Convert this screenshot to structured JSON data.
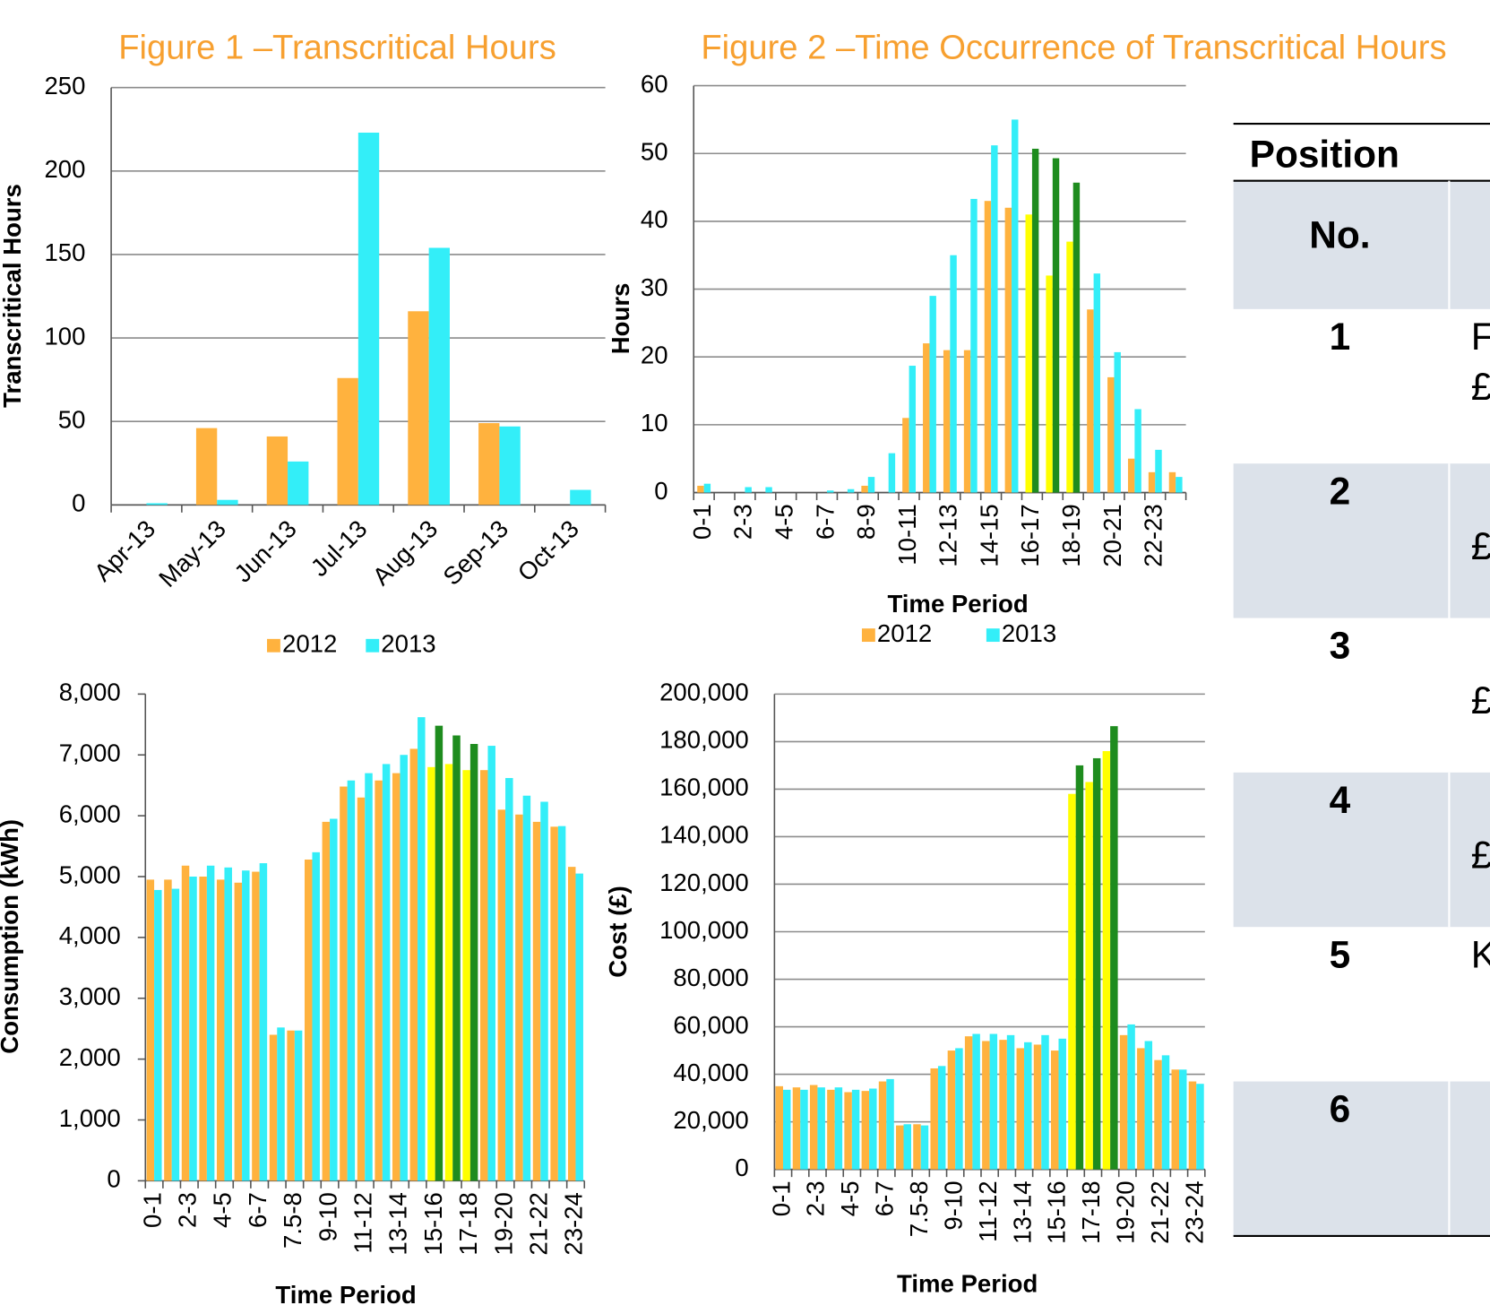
{
  "chart_data": [
    {
      "type": "bar",
      "title": "Figure 1 –Transcritical Hours",
      "ylabel": "Transcritical Hours",
      "categories": [
        "Apr-13",
        "May-13",
        "Jun-13",
        "Jul-13",
        "Aug-13",
        "Sep-13",
        "Oct-13"
      ],
      "series": [
        {
          "name": "2012",
          "color": "#FFB23E",
          "values": [
            0,
            46,
            41,
            76,
            116,
            49,
            0
          ]
        },
        {
          "name": "2013",
          "color": "#33EEF8",
          "values": [
            1,
            3,
            26,
            223,
            154,
            47,
            9
          ]
        }
      ],
      "ylim": [
        0,
        250
      ],
      "yticks": [
        0,
        50,
        100,
        150,
        200,
        250
      ],
      "grid": true,
      "legend": "bottom",
      "label_rotation": 45
    },
    {
      "type": "bar",
      "title": "Figure 2 –Time Occurrence of Transcritical Hours",
      "xlabel": "Time Period",
      "ylabel": "Hours",
      "categories": [
        "0-1",
        null,
        "2-3",
        null,
        "4-5",
        null,
        "6-7",
        null,
        "8-9",
        null,
        "10-11",
        null,
        "12-13",
        null,
        "14-15",
        null,
        "16-17",
        null,
        "18-19",
        null,
        "20-21",
        null,
        "22-23",
        null
      ],
      "series": [
        {
          "name": "2012",
          "color": "#FFB23E",
          "colors": [
            "#FFB23E",
            "#FFB23E",
            "#FFB23E",
            "#FFB23E",
            "#FFB23E",
            "#FFB23E",
            "#FFB23E",
            "#FFB23E",
            "#FFB23E",
            "#FFB23E",
            "#FFB23E",
            "#FFB23E",
            "#FFB23E",
            "#FFB23E",
            "#FFB23E",
            "#FFB23E",
            "#FFFF00",
            "#FFFF00",
            "#FFFF00",
            "#FFB23E",
            "#FFB23E",
            "#FFB23E",
            "#FFB23E",
            "#FFB23E"
          ],
          "values": [
            1,
            0,
            0,
            0,
            0,
            0,
            0,
            0,
            1,
            0,
            11,
            22,
            21,
            21,
            43,
            42,
            41,
            32,
            37,
            27,
            17,
            5,
            3,
            3
          ]
        },
        {
          "name": "2013",
          "color": "#33EEF8",
          "colors": [
            "#33EEF8",
            "#33EEF8",
            "#33EEF8",
            "#33EEF8",
            "#33EEF8",
            "#33EEF8",
            "#33EEF8",
            "#33EEF8",
            "#33EEF8",
            "#33EEF8",
            "#33EEF8",
            "#33EEF8",
            "#33EEF8",
            "#33EEF8",
            "#33EEF8",
            "#33EEF8",
            "#1E8C1E",
            "#1E8C1E",
            "#1E8C1E",
            "#33EEF8",
            "#33EEF8",
            "#33EEF8",
            "#33EEF8",
            "#33EEF8"
          ],
          "values": [
            1.3,
            0,
            0.8,
            0.8,
            0,
            0,
            0.3,
            0.5,
            2.3,
            5.8,
            18.7,
            29,
            35,
            43.3,
            51.2,
            55,
            50.7,
            49.3,
            45.7,
            32.3,
            20.7,
            12.3,
            6.3,
            2.3
          ]
        }
      ],
      "ylim": [
        0,
        60
      ],
      "yticks": [
        0,
        10,
        20,
        30,
        40,
        50,
        60
      ],
      "grid": true,
      "legend": "bottom",
      "label_rotation": 90
    },
    {
      "type": "bar",
      "xlabel": "Time Period",
      "ylabel": "Consumption (kWh)",
      "categories": [
        "0-1",
        null,
        "2-3",
        null,
        "4-5",
        null,
        "6-7",
        null,
        "7.5-8",
        null,
        "9-10",
        null,
        "11-12",
        null,
        "13-14",
        null,
        "15-16",
        null,
        "17-18",
        null,
        "19-20",
        null,
        "21-22",
        null,
        "23-24"
      ],
      "series": [
        {
          "color": "#FFB23E",
          "colors": [
            "#FFB23E",
            "#FFB23E",
            "#FFB23E",
            "#FFB23E",
            "#FFB23E",
            "#FFB23E",
            "#FFB23E",
            "#FFB23E",
            "#FFB23E",
            "#FFB23E",
            "#FFB23E",
            "#FFB23E",
            "#FFB23E",
            "#FFB23E",
            "#FFB23E",
            "#FFB23E",
            "#FFFF00",
            "#FFFF00",
            "#FFFF00",
            "#FFB23E",
            "#FFB23E",
            "#FFB23E",
            "#FFB23E",
            "#FFB23E",
            "#FFB23E"
          ],
          "values": [
            4950,
            4950,
            5180,
            5000,
            4950,
            4900,
            5080,
            2400,
            2470,
            5280,
            5900,
            6480,
            6300,
            6580,
            6700,
            7100,
            6800,
            6850,
            6750,
            6750,
            6100,
            6020,
            5900,
            5820,
            5160
          ]
        },
        {
          "color": "#33EEF8",
          "colors": [
            "#33EEF8",
            "#33EEF8",
            "#33EEF8",
            "#33EEF8",
            "#33EEF8",
            "#33EEF8",
            "#33EEF8",
            "#33EEF8",
            "#33EEF8",
            "#33EEF8",
            "#33EEF8",
            "#33EEF8",
            "#33EEF8",
            "#33EEF8",
            "#33EEF8",
            "#33EEF8",
            "#1E8C1E",
            "#1E8C1E",
            "#1E8C1E",
            "#33EEF8",
            "#33EEF8",
            "#33EEF8",
            "#33EEF8",
            "#33EEF8",
            "#33EEF8"
          ],
          "values": [
            4780,
            4800,
            5000,
            5180,
            5150,
            5100,
            5220,
            2520,
            2470,
            5400,
            5950,
            6580,
            6700,
            6850,
            7000,
            7620,
            7480,
            7320,
            7180,
            7150,
            6620,
            6330,
            6230,
            5830,
            5050
          ]
        }
      ],
      "ylim": [
        0,
        8000
      ],
      "yticks": [
        0,
        {
          "value": 1000,
          "label": "1,000"
        },
        {
          "value": 2000,
          "label": "2,000"
        },
        {
          "value": 3000,
          "label": "3,000"
        },
        {
          "value": 4000,
          "label": "4,000"
        },
        {
          "value": 5000,
          "label": "5,000"
        },
        {
          "value": 6000,
          "label": "6,000"
        },
        {
          "value": 7000,
          "label": "7,000"
        },
        {
          "value": 8000,
          "label": "8,000"
        }
      ],
      "grid": false,
      "label_rotation": 90
    },
    {
      "type": "bar",
      "xlabel": "Time Period",
      "ylabel": "Cost (£)",
      "categories": [
        "0-1",
        null,
        "2-3",
        null,
        "4-5",
        null,
        "6-7",
        null,
        "7.5-8",
        null,
        "9-10",
        null,
        "11-12",
        null,
        "13-14",
        null,
        "15-16",
        null,
        "17-18",
        null,
        "19-20",
        null,
        "21-22",
        null,
        "23-24"
      ],
      "series": [
        {
          "color": "#FFB23E",
          "colors": [
            "#FFB23E",
            "#FFB23E",
            "#FFB23E",
            "#FFB23E",
            "#FFB23E",
            "#FFB23E",
            "#FFB23E",
            "#FFB23E",
            "#FFB23E",
            "#FFB23E",
            "#FFB23E",
            "#FFB23E",
            "#FFB23E",
            "#FFB23E",
            "#FFB23E",
            "#FFB23E",
            "#FFB23E",
            "#FFFF00",
            "#FFFF00",
            "#FFFF00",
            "#FFB23E",
            "#FFB23E",
            "#FFB23E",
            "#FFB23E",
            "#FFB23E"
          ],
          "values": [
            35000,
            34500,
            35500,
            33500,
            32500,
            33000,
            37000,
            18500,
            19000,
            42500,
            50000,
            56000,
            54000,
            54500,
            51000,
            52500,
            50000,
            158000,
            163000,
            176000,
            56500,
            51000,
            46000,
            42000,
            37000
          ]
        },
        {
          "color": "#33EEF8",
          "colors": [
            "#33EEF8",
            "#33EEF8",
            "#33EEF8",
            "#33EEF8",
            "#33EEF8",
            "#33EEF8",
            "#33EEF8",
            "#33EEF8",
            "#33EEF8",
            "#33EEF8",
            "#33EEF8",
            "#33EEF8",
            "#33EEF8",
            "#33EEF8",
            "#33EEF8",
            "#33EEF8",
            "#33EEF8",
            "#1E8C1E",
            "#1E8C1E",
            "#1E8C1E",
            "#33EEF8",
            "#33EEF8",
            "#33EEF8",
            "#33EEF8",
            "#33EEF8"
          ],
          "values": [
            33500,
            33500,
            34500,
            34500,
            33500,
            34000,
            38000,
            19000,
            18500,
            43500,
            51000,
            57000,
            57000,
            56500,
            53500,
            56500,
            55000,
            170000,
            173000,
            186500,
            61000,
            54000,
            48000,
            42000,
            36000
          ]
        }
      ],
      "ylim": [
        0,
        200000
      ],
      "yticks": [
        0,
        {
          "value": 20000,
          "label": "20,000"
        },
        {
          "value": 40000,
          "label": "40,000"
        },
        {
          "value": 60000,
          "label": "60,000"
        },
        {
          "value": 80000,
          "label": "80,000"
        },
        {
          "value": 100000,
          "label": "100,000"
        },
        {
          "value": 120000,
          "label": "120,000"
        },
        {
          "value": 140000,
          "label": "140,000"
        },
        {
          "value": 160000,
          "label": "160,000"
        },
        {
          "value": 180000,
          "label": "180,000"
        },
        {
          "value": 200000,
          "label": "200,000"
        }
      ],
      "grid": true,
      "label_rotation": 90
    }
  ],
  "table": {
    "caption": "Position",
    "header": "No.",
    "rows": [
      {
        "no": "1",
        "lines": [
          "F",
          "£"
        ]
      },
      {
        "no": "2",
        "lines": [
          "£"
        ]
      },
      {
        "no": "3",
        "lines": [
          "£"
        ]
      },
      {
        "no": "4",
        "lines": [
          "£"
        ]
      },
      {
        "no": "5",
        "lines": [
          "K"
        ]
      },
      {
        "no": "6",
        "lines": []
      }
    ]
  }
}
